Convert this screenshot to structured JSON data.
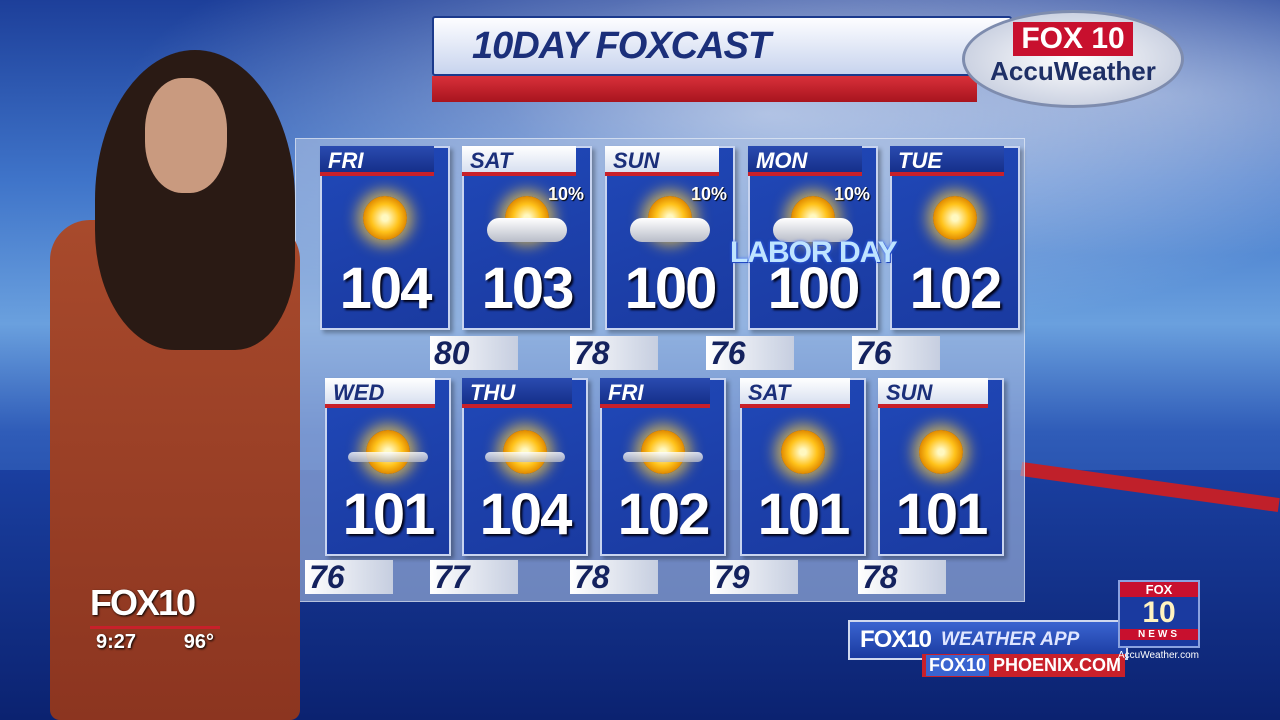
{
  "header": {
    "title": "10DAY FOXCAST",
    "logo_top": "FOX 10",
    "logo_bottom": "AccuWeather"
  },
  "row1": [
    {
      "day": "FRI",
      "icon": "sun-icon",
      "precip": "",
      "high": "104"
    },
    {
      "day": "SAT",
      "icon": "sun-cloud-icon",
      "precip": "10%",
      "high": "103"
    },
    {
      "day": "SUN",
      "icon": "sun-cloud-icon",
      "precip": "10%",
      "high": "100"
    },
    {
      "day": "MON",
      "icon": "sun-cloud-icon",
      "precip": "10%",
      "high": "100"
    },
    {
      "day": "TUE",
      "icon": "sun-icon",
      "precip": "",
      "high": "102"
    }
  ],
  "row1_lows": [
    "80",
    "78",
    "76",
    "76"
  ],
  "holiday": "LABOR DAY",
  "row2": [
    {
      "day": "WED",
      "icon": "sun-haze-icon",
      "high": "101"
    },
    {
      "day": "THU",
      "icon": "sun-haze-icon",
      "high": "104"
    },
    {
      "day": "FRI",
      "icon": "sun-haze-icon",
      "high": "102"
    },
    {
      "day": "SAT",
      "icon": "sun-icon",
      "high": "101"
    },
    {
      "day": "SUN",
      "icon": "sun-icon",
      "high": "101"
    }
  ],
  "row2_lows": [
    "76",
    "77",
    "78",
    "79",
    "78"
  ],
  "bug": {
    "station": "FOX10",
    "time": "9:27",
    "temp": "96°"
  },
  "promo": {
    "station": "FOX10",
    "app": "WEATHER APP",
    "web_station": "FOX10",
    "web": "PHOENIX.COM"
  },
  "news_logo": {
    "top": "FOX",
    "num": "10",
    "bottom": "NEWS",
    "accu": "AccuWeather.com"
  }
}
